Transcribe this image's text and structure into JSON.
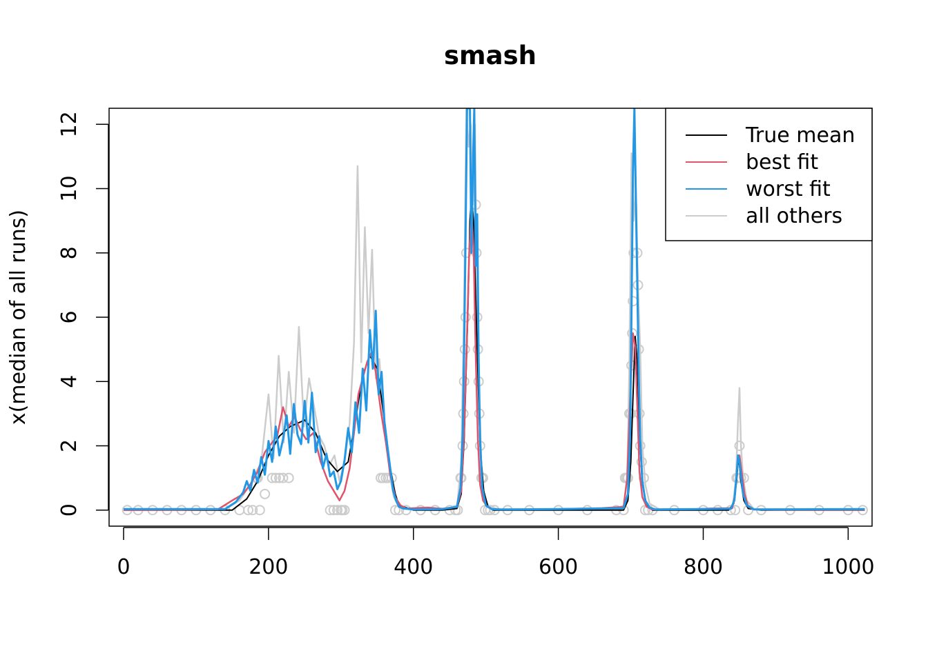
{
  "chart_data": {
    "type": "line",
    "title": "smash",
    "xlabel": "",
    "ylabel": "x(median of all runs)",
    "xlim": [
      -20,
      1033
    ],
    "ylim": [
      -0.5,
      12.5
    ],
    "x_ticks": [
      0,
      200,
      400,
      600,
      800,
      1000
    ],
    "y_ticks": [
      0,
      2,
      4,
      6,
      8,
      10,
      12
    ],
    "legend_position": "top-right",
    "legend": [
      {
        "label": "True mean",
        "color": "#000000"
      },
      {
        "label": "best fit",
        "color": "#DF536B"
      },
      {
        "label": "worst fit",
        "color": "#2297E6"
      },
      {
        "label": "all others",
        "color": "#CCCCCC"
      }
    ],
    "series": [
      {
        "name": "True mean",
        "color": "#000000",
        "x": [
          0,
          150,
          170,
          185,
          200,
          215,
          230,
          250,
          265,
          280,
          295,
          310,
          320,
          330,
          340,
          350,
          360,
          368,
          375,
          380,
          400,
          440,
          460,
          466,
          470,
          475,
          478,
          480,
          483,
          488,
          492,
          497,
          503,
          510,
          520,
          600,
          690,
          696,
          700,
          703,
          706,
          709,
          712,
          716,
          722,
          730,
          800,
          835,
          842,
          846,
          848,
          850,
          852,
          856,
          862,
          880,
          1023
        ],
        "y": [
          0,
          0,
          0.35,
          0.9,
          1.7,
          2.3,
          2.6,
          2.8,
          2.4,
          1.6,
          1.2,
          1.5,
          2.8,
          4.2,
          4.8,
          4.4,
          2.8,
          1.3,
          0.5,
          0.15,
          0,
          0,
          0.05,
          0.5,
          2.2,
          6,
          9,
          9.8,
          9,
          5,
          2,
          0.6,
          0.1,
          0,
          0,
          0,
          0,
          0.3,
          1.5,
          3.5,
          5.4,
          4.6,
          2.4,
          0.8,
          0.15,
          0,
          0,
          0,
          0.2,
          0.9,
          1.5,
          1.4,
          0.9,
          0.3,
          0.05,
          0,
          0
        ]
      },
      {
        "name": "best fit",
        "color": "#DF536B",
        "x": [
          0,
          130,
          150,
          165,
          175,
          185,
          195,
          205,
          212,
          220,
          228,
          236,
          244,
          252,
          262,
          272,
          282,
          290,
          298,
          305,
          312,
          318,
          324,
          330,
          336,
          342,
          348,
          355,
          362,
          368,
          375,
          382,
          390,
          420,
          440,
          460,
          466,
          470,
          474,
          477,
          480,
          483,
          486,
          489,
          492,
          496,
          502,
          510,
          530,
          600,
          660,
          690,
          695,
          699,
          703,
          706,
          709,
          712,
          716,
          722,
          730,
          790,
          810,
          840,
          844,
          847,
          850,
          853,
          857,
          862,
          870,
          900,
          1023
        ],
        "y": [
          0,
          0.02,
          0.3,
          0.5,
          0.8,
          1.2,
          1.8,
          2.1,
          2.3,
          3.2,
          2.6,
          2.9,
          2.5,
          2.2,
          2.4,
          1.5,
          0.9,
          0.6,
          0.3,
          0.6,
          1.3,
          2.4,
          3.6,
          4.1,
          4.6,
          4.9,
          4.3,
          3.1,
          2.1,
          1.1,
          0.4,
          0.15,
          0.05,
          0.08,
          0.04,
          0.1,
          0.6,
          2.5,
          5.5,
          8.0,
          9.3,
          8.2,
          4.8,
          2.2,
          0.8,
          0.3,
          0.1,
          0.02,
          0.02,
          0.03,
          0.06,
          0.1,
          1.0,
          3.4,
          5.5,
          5.1,
          3.2,
          1.2,
          0.4,
          0.1,
          0.02,
          0.03,
          0.05,
          0.06,
          0.5,
          1.4,
          1.7,
          1.2,
          0.5,
          0.1,
          0.02,
          0.01,
          0.01
        ]
      },
      {
        "name": "worst fit",
        "color": "#2297E6",
        "x": [
          0,
          140,
          155,
          165,
          170,
          175,
          180,
          185,
          190,
          195,
          200,
          205,
          210,
          215,
          220,
          225,
          230,
          235,
          240,
          245,
          250,
          255,
          260,
          265,
          270,
          275,
          280,
          285,
          290,
          295,
          300,
          305,
          310,
          315,
          320,
          325,
          330,
          335,
          340,
          344,
          348,
          352,
          356,
          360,
          364,
          368,
          372,
          376,
          380,
          386,
          400,
          440,
          460,
          465,
          468,
          470,
          472,
          474,
          476,
          478,
          480,
          482,
          484,
          486,
          488,
          490,
          492,
          495,
          500,
          508,
          520,
          600,
          690,
          696,
          699,
          701,
          703,
          705,
          707,
          709,
          711,
          713,
          716,
          720,
          726,
          734,
          800,
          838,
          843,
          846,
          848,
          850,
          852,
          855,
          860,
          870,
          1023
        ],
        "y": [
          0.03,
          0.03,
          0.25,
          0.55,
          0.9,
          0.6,
          1.25,
          0.85,
          1.65,
          1.1,
          2.15,
          1.5,
          2.6,
          1.7,
          2.2,
          2.95,
          1.75,
          3.3,
          2.35,
          2.05,
          3.4,
          2.1,
          3.65,
          1.8,
          2.3,
          1.3,
          1.75,
          1.05,
          1.2,
          0.65,
          0.9,
          1.55,
          2.55,
          1.8,
          3.35,
          2.4,
          4.4,
          3.1,
          5.6,
          4.4,
          6.2,
          3.6,
          4.3,
          2.75,
          2.0,
          1.3,
          0.6,
          0.3,
          0.1,
          0.05,
          0.02,
          0.03,
          0.1,
          0.7,
          2.4,
          5.0,
          8.6,
          12.5,
          12.5,
          12.5,
          8.0,
          10.6,
          12.5,
          7.6,
          9.2,
          4.7,
          2.2,
          0.7,
          0.15,
          0.03,
          0.02,
          0.03,
          0.06,
          0.5,
          2.2,
          6.2,
          10.5,
          12.5,
          9.7,
          7.0,
          4.2,
          2.2,
          0.9,
          0.3,
          0.08,
          0.02,
          0.03,
          0.04,
          0.3,
          1.1,
          1.7,
          1.5,
          1.1,
          0.5,
          0.15,
          0.02,
          0.03
        ]
      },
      {
        "name": "all others",
        "color": "#CCCCCC",
        "x": [
          0,
          140,
          160,
          175,
          190,
          200,
          207,
          214,
          221,
          228,
          235,
          242,
          249,
          256,
          263,
          270,
          277,
          284,
          291,
          298,
          305,
          312,
          318,
          323,
          328,
          333,
          338,
          343,
          348,
          353,
          358,
          363,
          368,
          373,
          380,
          400,
          460,
          466,
          470,
          473,
          476,
          479,
          482,
          485,
          488,
          491,
          494,
          498,
          504,
          520,
          600,
          690,
          695,
          698,
          701,
          704,
          707,
          710,
          713,
          716,
          720,
          726,
          740,
          800,
          840,
          845,
          848,
          850,
          852,
          855,
          860,
          870,
          1023
        ],
        "y": [
          0.02,
          0.02,
          0.3,
          0.8,
          1.5,
          3.6,
          1.6,
          4.8,
          2.1,
          4.3,
          2.4,
          5.7,
          2.6,
          4.1,
          3.2,
          2.3,
          2.0,
          1.4,
          1.7,
          0.9,
          1.5,
          2.7,
          5.2,
          10.7,
          4.6,
          8.8,
          5.5,
          8.1,
          4.1,
          4.7,
          3.0,
          2.2,
          1.0,
          0.4,
          0.1,
          0.03,
          0.05,
          1.5,
          6.5,
          12.5,
          11.3,
          12.0,
          9.5,
          12.0,
          6.0,
          3.5,
          1.2,
          0.4,
          0.1,
          0.02,
          0.02,
          0.05,
          1.0,
          4.5,
          11.1,
          9.0,
          10.0,
          7.0,
          5.0,
          2.0,
          0.8,
          0.2,
          0.02,
          0.02,
          0.05,
          0.9,
          2.8,
          3.8,
          2.0,
          1.0,
          0.3,
          0.03,
          0.02
        ]
      }
    ],
    "points": {
      "name": "all others",
      "color": "#CCCCCC",
      "x": [
        5,
        20,
        40,
        60,
        80,
        100,
        120,
        140,
        160,
        172,
        178,
        183,
        185,
        188,
        195,
        205,
        210,
        215,
        220,
        228,
        285,
        290,
        295,
        300,
        302,
        305,
        355,
        358,
        362,
        365,
        370,
        375,
        380,
        390,
        410,
        430,
        450,
        458,
        461,
        465,
        466,
        468,
        469,
        470,
        471,
        472,
        473,
        486,
        487,
        488,
        489,
        490,
        491,
        492,
        494,
        496,
        499,
        503,
        506,
        512,
        530,
        560,
        600,
        640,
        680,
        690,
        692,
        694,
        696,
        698,
        700,
        701,
        702,
        703,
        704,
        709,
        710,
        711,
        712,
        713,
        715,
        718,
        720,
        724,
        730,
        760,
        800,
        820,
        838,
        844,
        846,
        848,
        850,
        852,
        856,
        862,
        880,
        920,
        960,
        1000,
        1020
      ],
      "y": [
        0,
        0,
        0,
        0,
        0,
        0,
        0,
        0,
        0,
        0,
        0,
        1,
        1,
        0,
        0.5,
        1,
        1,
        1,
        1,
        1,
        0,
        0,
        0,
        0,
        0,
        0,
        1,
        1,
        1,
        1,
        1,
        0,
        0,
        0,
        0,
        0,
        0,
        0,
        0,
        1,
        1,
        2,
        3,
        4,
        5,
        6,
        8,
        9.5,
        8,
        6,
        5,
        4,
        3,
        2,
        1,
        1,
        0,
        0,
        0,
        0,
        0,
        0,
        0,
        0,
        0,
        0,
        1,
        1,
        1,
        3,
        3,
        4.5,
        5.5,
        6.5,
        8,
        8,
        7,
        5,
        3,
        2,
        1.5,
        1,
        0,
        0,
        0,
        0,
        0,
        0,
        0,
        0,
        1,
        1,
        2,
        1,
        1,
        0,
        0,
        0,
        0,
        0,
        0
      ]
    }
  }
}
